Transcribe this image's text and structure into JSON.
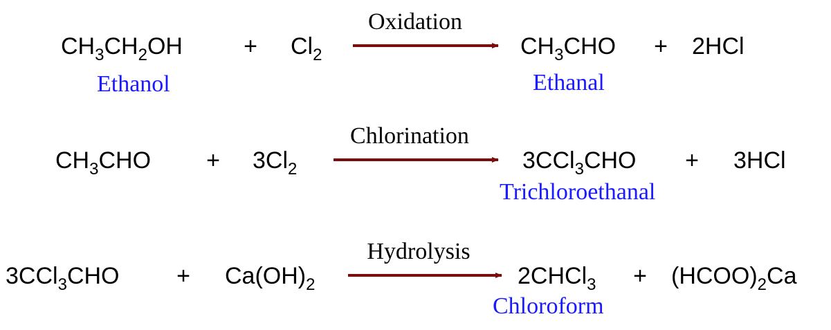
{
  "plus": "+",
  "reactions": [
    {
      "reactants": [
        "CH3CH2OH",
        "Cl2"
      ],
      "condition": "Oxidation",
      "products": [
        "CH3CHO",
        "2HCl"
      ],
      "reactant_name": "Ethanol",
      "product_name": "Ethanal"
    },
    {
      "reactants": [
        "CH3CHO",
        "3Cl2"
      ],
      "condition": "Chlorination",
      "products": [
        "3CCl3CHO",
        "3HCl"
      ],
      "product_name": "Trichloroethanal"
    },
    {
      "reactants": [
        "3CCl3CHO",
        "Ca(OH)2"
      ],
      "condition": "Hydrolysis",
      "products": [
        "2CHCl3",
        "(HCOO)2Ca"
      ],
      "product_name": "Chloroform"
    }
  ]
}
